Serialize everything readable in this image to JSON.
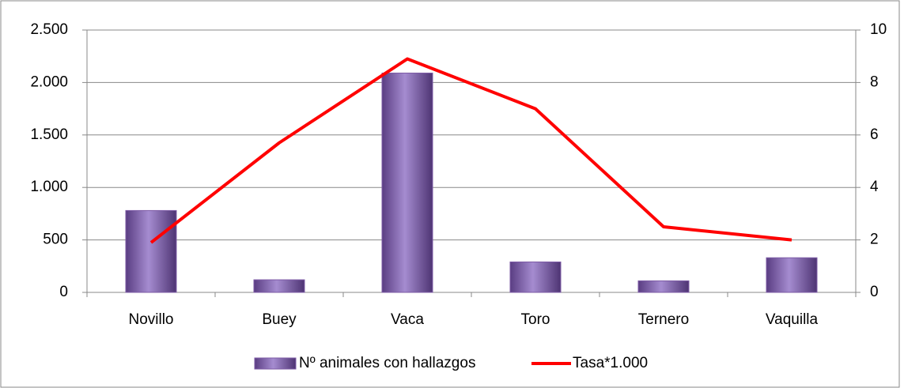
{
  "chart_data": {
    "type": "bar",
    "categories": [
      "Novillo",
      "Buey",
      "Vaca",
      "Toro",
      "Ternero",
      "Vaquilla"
    ],
    "series": [
      {
        "name": "Nº animales con hallazgos",
        "type": "bar",
        "color": "#7d5ba6",
        "values": [
          780,
          120,
          2090,
          290,
          110,
          330
        ]
      },
      {
        "name": "Tasa*1.000",
        "type": "line",
        "axis": "y2",
        "color": "#ff0000",
        "values": [
          1.9,
          5.7,
          8.9,
          7.0,
          2.5,
          2.0
        ]
      }
    ],
    "ylim": [
      0,
      2500
    ],
    "yticks": [
      0,
      500,
      {
        "value": 1000,
        "label": "1.000"
      },
      {
        "value": 1500,
        "label": "1.500"
      },
      {
        "value": 2000,
        "label": "2.000"
      },
      {
        "value": 2500,
        "label": "2.500"
      }
    ],
    "y2lim": [
      0,
      10
    ],
    "y2ticks": [
      0,
      2,
      4,
      6,
      8,
      10
    ],
    "grid": true,
    "legend": "bottom"
  }
}
